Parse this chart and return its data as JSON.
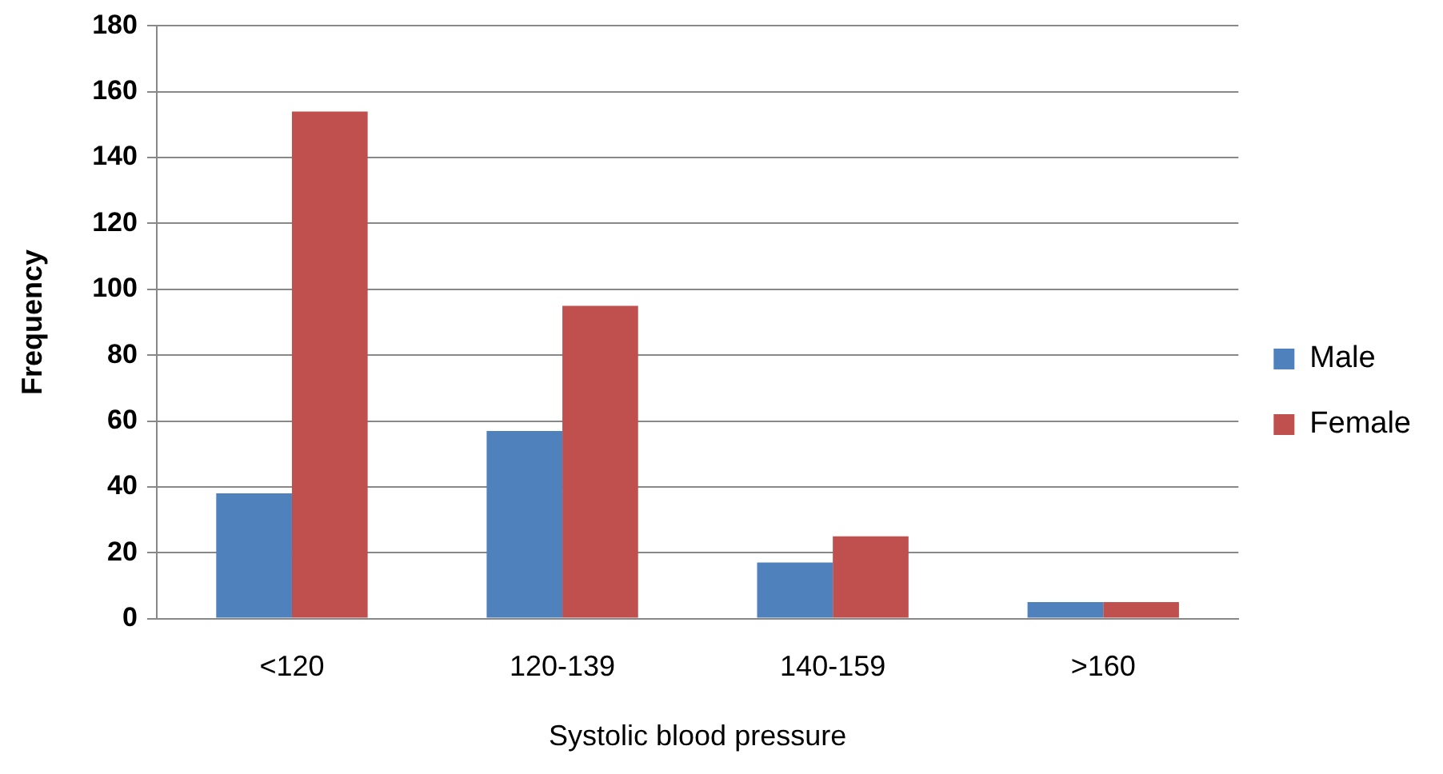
{
  "chart_data": {
    "type": "bar",
    "xlabel": "Systolic blood pressure",
    "ylabel": "Frequency",
    "categories": [
      "<120",
      "120-139",
      "140-159",
      ">160"
    ],
    "series": [
      {
        "name": "Male",
        "color": "#4f81bd",
        "values": [
          38,
          57,
          17,
          5
        ]
      },
      {
        "name": "Female",
        "color": "#c0504d",
        "values": [
          154,
          95,
          25,
          5
        ]
      }
    ],
    "ylim": [
      0,
      180
    ],
    "yticks": [
      0,
      20,
      40,
      60,
      80,
      100,
      120,
      140,
      160,
      180
    ],
    "grid": "y",
    "legend": "right"
  }
}
